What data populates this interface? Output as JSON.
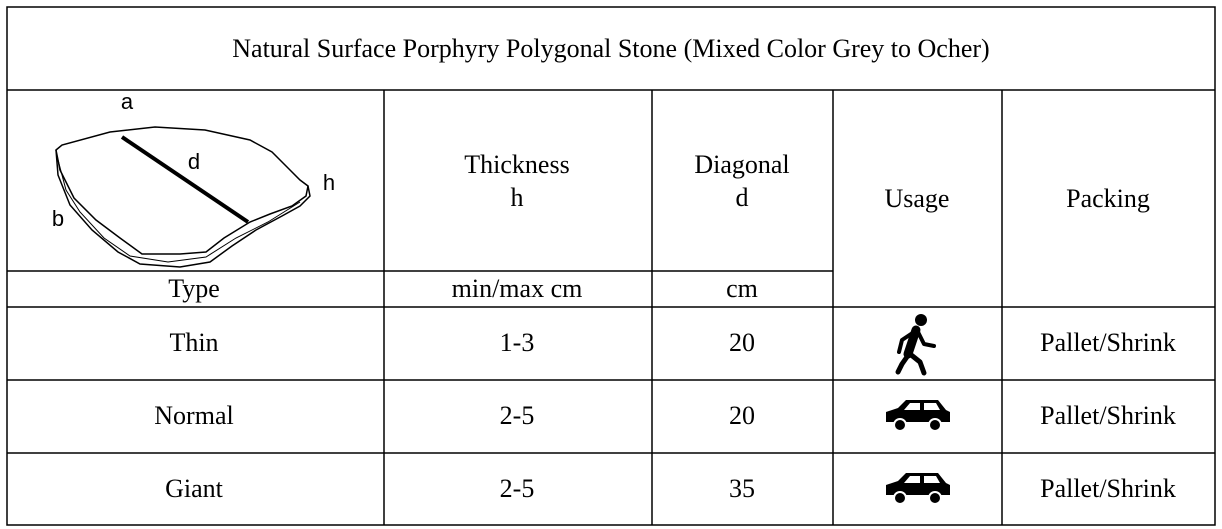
{
  "title": "Natural Surface Porphyry Polygonal Stone (Mixed Color Grey to Ocher)",
  "diagram": {
    "labels": [
      "a",
      "d",
      "h",
      "b"
    ]
  },
  "header": {
    "type": "Type",
    "thickness": {
      "label": "Thickness",
      "symbol": "h",
      "unit": "min/max cm"
    },
    "diagonal": {
      "label": "Diagonal",
      "symbol": "d",
      "unit": "cm"
    },
    "usage": "Usage",
    "packing": "Packing"
  },
  "table": {
    "rows": [
      [
        "Thin",
        "1-3",
        20,
        "Pallet/Shrink"
      ],
      [
        "Normal",
        "2-5",
        20,
        "Pallet/Shrink"
      ],
      [
        "Giant",
        "2-5",
        35,
        "Pallet/Shrink"
      ]
    ]
  }
}
